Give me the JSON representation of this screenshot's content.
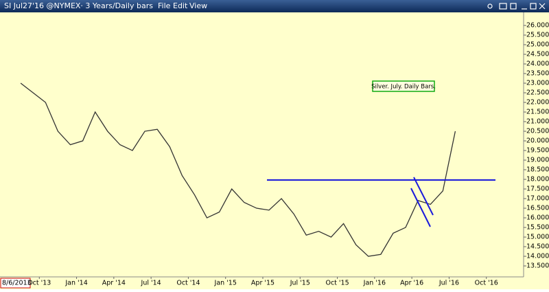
{
  "window": {
    "title": "SI Jul27'16 @NYMEX· 3 Years/Daily bars",
    "menu": [
      "File",
      "Edit",
      "View"
    ]
  },
  "chart_data": {
    "type": "line",
    "annotation": "Silver. July. Daily Bars.",
    "start_label": "8/6/2013",
    "x": [
      "2013-08",
      "2013-09",
      "2013-10",
      "2013-11",
      "2013-12",
      "2014-01",
      "2014-02",
      "2014-03",
      "2014-04",
      "2014-05",
      "2014-06",
      "2014-07",
      "2014-08",
      "2014-09",
      "2014-10",
      "2014-11",
      "2014-12",
      "2015-01",
      "2015-02",
      "2015-03",
      "2015-04",
      "2015-05",
      "2015-06",
      "2015-07",
      "2015-08",
      "2015-09",
      "2015-10",
      "2015-11",
      "2015-12",
      "2016-01",
      "2016-02",
      "2016-03",
      "2016-04",
      "2016-05",
      "2016-06",
      "2016-07"
    ],
    "values": [
      23.0,
      22.5,
      22.0,
      20.5,
      19.8,
      20.0,
      21.5,
      20.5,
      19.8,
      19.5,
      20.5,
      20.6,
      19.7,
      18.2,
      17.2,
      16.0,
      16.3,
      17.5,
      16.8,
      16.5,
      16.4,
      17.0,
      16.2,
      15.1,
      15.3,
      15.0,
      15.7,
      14.6,
      14.0,
      14.1,
      15.2,
      15.5,
      16.9,
      16.7,
      17.4,
      20.5
    ],
    "color": "#333333",
    "xlim": [
      "2013-07",
      "2017-01"
    ],
    "xticks": [
      {
        "value": "2013-10",
        "label": "Oct '13"
      },
      {
        "value": "2014-01",
        "label": "Jan '14"
      },
      {
        "value": "2014-04",
        "label": "Apr '14"
      },
      {
        "value": "2014-07",
        "label": "Jul '14"
      },
      {
        "value": "2014-10",
        "label": "Oct '14"
      },
      {
        "value": "2015-01",
        "label": "Jan '15"
      },
      {
        "value": "2015-04",
        "label": "Apr '15"
      },
      {
        "value": "2015-07",
        "label": "Jul '15"
      },
      {
        "value": "2015-10",
        "label": "Oct '15"
      },
      {
        "value": "2016-01",
        "label": "Jan '16"
      },
      {
        "value": "2016-04",
        "label": "Apr '16"
      },
      {
        "value": "2016-07",
        "label": "Jul '16"
      },
      {
        "value": "2016-10",
        "label": "Oct '16"
      }
    ],
    "ylim": [
      12.93,
      26.68
    ],
    "yticks": [
      {
        "value": 13.5,
        "label": "13.500"
      },
      {
        "value": 14,
        "label": "14.000"
      },
      {
        "value": 14.5,
        "label": "14.500"
      },
      {
        "value": 15,
        "label": "15.000"
      },
      {
        "value": 15.5,
        "label": "15.500"
      },
      {
        "value": 16,
        "label": "16.000"
      },
      {
        "value": 16.5,
        "label": "16.500"
      },
      {
        "value": 17,
        "label": "17.000"
      },
      {
        "value": 17.5,
        "label": "17.500"
      },
      {
        "value": 18,
        "label": "18.000"
      },
      {
        "value": 18.5,
        "label": "18.500"
      },
      {
        "value": 19,
        "label": "19.000"
      },
      {
        "value": 19.5,
        "label": "19.500"
      },
      {
        "value": 20,
        "label": "20.000"
      },
      {
        "value": 20.5,
        "label": "20.500"
      },
      {
        "value": 21,
        "label": "21.000"
      },
      {
        "value": 21.5,
        "label": "21.500"
      },
      {
        "value": 22,
        "label": "22.000"
      },
      {
        "value": 22.5,
        "label": "22.500"
      },
      {
        "value": 23,
        "label": "23.000"
      },
      {
        "value": 23.5,
        "label": "23.500"
      },
      {
        "value": 24,
        "label": "24.000"
      },
      {
        "value": 24.5,
        "label": "24.500"
      },
      {
        "value": 25,
        "label": "25.000"
      },
      {
        "value": 25.5,
        "label": "25.500"
      },
      {
        "value": 26,
        "label": "26.000"
      }
    ]
  }
}
